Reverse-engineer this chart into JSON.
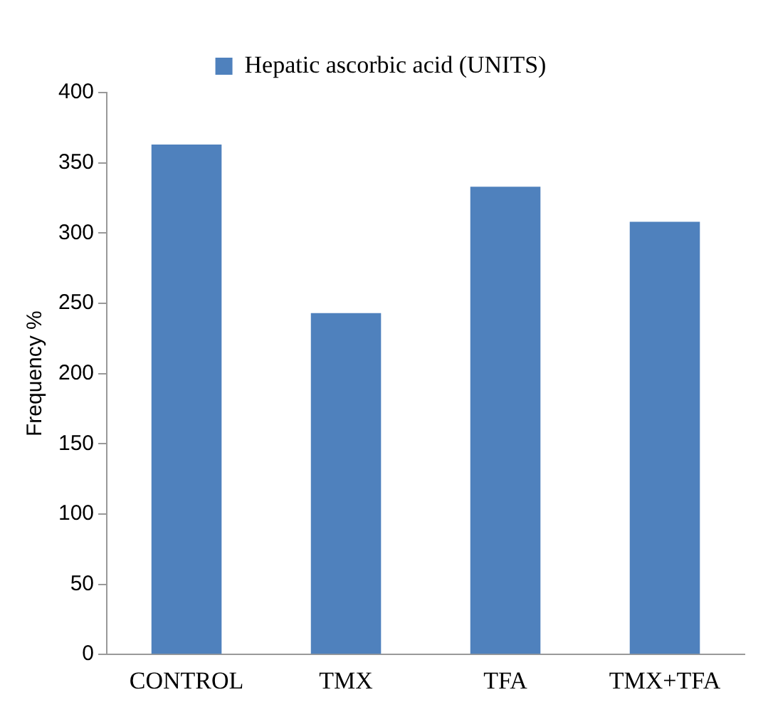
{
  "chart_data": {
    "type": "bar",
    "ylabel": "Frequency %",
    "categories": [
      "CONTROL",
      "TMX",
      "TFA",
      "TMX+TFA"
    ],
    "series": [
      {
        "name": "Hepatic ascorbic acid (UNITS)",
        "color": "#4f81bd",
        "values": [
          363,
          243,
          333,
          308
        ]
      }
    ],
    "ylim": [
      0,
      400
    ],
    "yticks": [
      0,
      50,
      100,
      150,
      200,
      250,
      300,
      350,
      400
    ],
    "grid": false,
    "legend": "top"
  }
}
